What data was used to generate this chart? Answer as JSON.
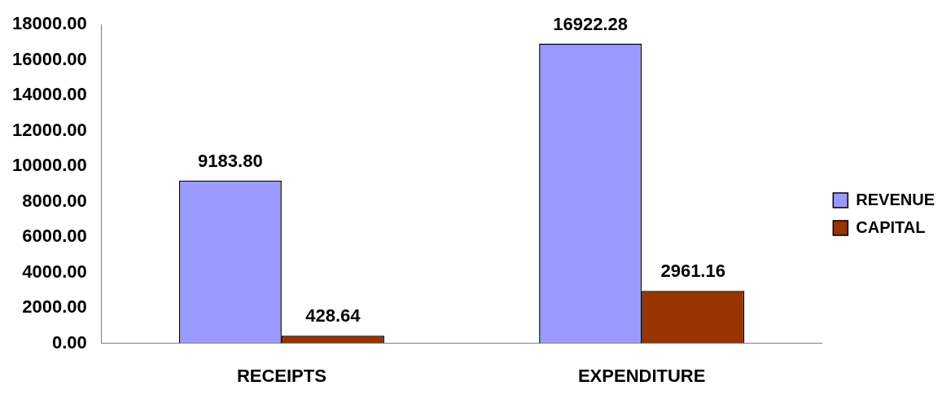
{
  "chart_data": {
    "type": "bar",
    "categories": [
      "RECEIPTS",
      "EXPENDITURE"
    ],
    "series": [
      {
        "name": "REVENUE",
        "color": "#9999ff",
        "values": [
          9183.8,
          16922.28
        ],
        "value_labels": [
          "9183.80",
          "16922.28"
        ]
      },
      {
        "name": "CAPITAL",
        "color": "#993300",
        "values": [
          428.64,
          2961.16
        ],
        "value_labels": [
          "428.64",
          "2961.16"
        ]
      }
    ],
    "ylim": [
      0,
      18000
    ],
    "yticks": [
      {
        "value": 0,
        "label": "0.00"
      },
      {
        "value": 2000,
        "label": "2000.00"
      },
      {
        "value": 4000,
        "label": "4000.00"
      },
      {
        "value": 6000,
        "label": "6000.00"
      },
      {
        "value": 8000,
        "label": "8000.00"
      },
      {
        "value": 10000,
        "label": "10000.00"
      },
      {
        "value": 12000,
        "label": "12000.00"
      },
      {
        "value": 14000,
        "label": "14000.00"
      },
      {
        "value": 16000,
        "label": "16000.00"
      },
      {
        "value": 18000,
        "label": "18000.00"
      }
    ],
    "grid": false,
    "legend": "right"
  }
}
